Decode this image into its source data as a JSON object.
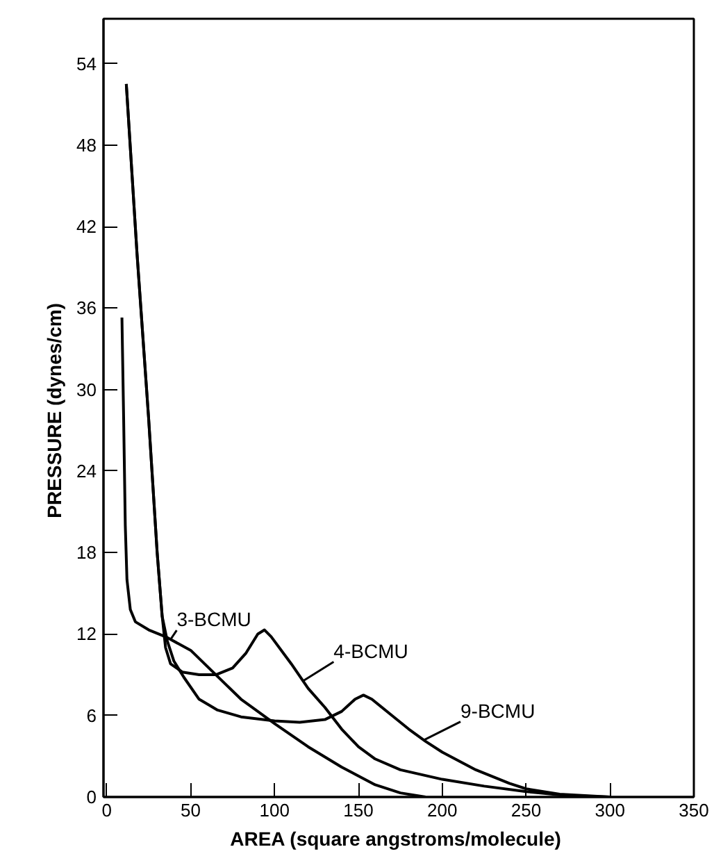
{
  "chart_data": {
    "type": "line",
    "xlabel": "AREA  (square angstroms/molecule)",
    "ylabel": "PRESSURE  (dynes/cm)",
    "xlim": [
      -2,
      350
    ],
    "ylim": [
      0,
      57.3
    ],
    "xticks": [
      0,
      50,
      100,
      150,
      200,
      250,
      300,
      350
    ],
    "yticks": [
      0,
      6,
      12,
      18,
      24,
      30,
      36,
      42,
      48,
      54
    ],
    "grid": false,
    "legend": false,
    "marker": "none",
    "line_style": "solid",
    "series": [
      {
        "name": "3-BCMU",
        "color": "#000000",
        "x": [
          9,
          10,
          11,
          12,
          14,
          17,
          25,
          35,
          50,
          65,
          80,
          100,
          120,
          140,
          160,
          175,
          190
        ],
        "values": [
          35.3,
          28,
          20,
          16,
          13.8,
          12.9,
          12.3,
          11.8,
          10.8,
          9,
          7.2,
          5.4,
          3.7,
          2.2,
          0.9,
          0.3,
          0
        ]
      },
      {
        "name": "4-BCMU",
        "color": "#000000",
        "x": [
          11.6,
          18,
          24.9,
          30,
          33,
          35,
          38,
          45,
          55,
          65,
          75,
          83,
          90,
          94,
          98,
          110,
          120,
          130,
          140,
          150,
          160,
          175,
          200,
          225,
          250,
          275,
          300
        ],
        "values": [
          52.5,
          40,
          27.9,
          18,
          13.3,
          11,
          9.8,
          9.2,
          9.0,
          9.0,
          9.5,
          10.6,
          12,
          12.3,
          11.8,
          9.8,
          8,
          6.6,
          5,
          3.7,
          2.8,
          2.0,
          1.3,
          0.8,
          0.4,
          0.1,
          0
        ]
      },
      {
        "name": "9-BCMU",
        "color": "#000000",
        "x": [
          11.6,
          18,
          24.9,
          30,
          33,
          36,
          40,
          46,
          55,
          66,
          80,
          100,
          115,
          130,
          140,
          148,
          153,
          158,
          170,
          180,
          190,
          200,
          220,
          240,
          250,
          270,
          300
        ],
        "values": [
          52.5,
          40,
          27.9,
          18,
          13.3,
          11.5,
          10,
          8.8,
          7.2,
          6.4,
          5.9,
          5.6,
          5.5,
          5.7,
          6.3,
          7.2,
          7.5,
          7.2,
          6,
          5,
          4.1,
          3.3,
          2,
          1,
          0.6,
          0.2,
          0
        ]
      }
    ]
  }
}
